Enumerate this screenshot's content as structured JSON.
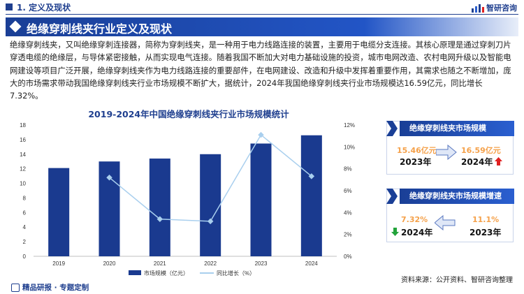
{
  "header": {
    "section_title": "1. 定义及现状",
    "logo_text": "智研咨询"
  },
  "banner": {
    "title": "绝缘穿刺线夹行业定义及现状"
  },
  "intro": {
    "text": "绝缘穿刺线夹，又叫绝缘穿刺连接器，简称为穿刺线夹，是一种用于电力线路连接的装置，主要用于电缆分支连接。其核心原理是通过穿刺刀片穿透电缆的绝缘层，与导体紧密接触，从而实现电气连接。随着我国不断加大对电力基础设施的投资，城市电网改造、农村电网升级以及智能电网建设等项目广泛开展，绝缘穿刺线夹作为电力线路连接的重要部件，在电网建设、改造和升级中发挥着重要作用，其需求也随之不断增加，庞大的市场需求带动我国绝缘穿刺线夹行业市场规模不断扩大，据统计，2024年我国绝缘穿刺线夹行业市场规模达16.59亿元，同比增长7.32%。"
  },
  "chart_data": {
    "type": "bar",
    "title": "2019-2024年中国绝缘穿刺线夹行业市场规模统计",
    "categories": [
      "2019",
      "2020",
      "2021",
      "2022",
      "2023",
      "2024"
    ],
    "series": [
      {
        "name": "市场规模（亿元）",
        "type": "bar",
        "axis": "left",
        "values": [
          12.1,
          13.0,
          13.4,
          14.0,
          15.46,
          16.59
        ]
      },
      {
        "name": "同比增长（%）",
        "type": "line",
        "axis": "right",
        "values": [
          null,
          7.2,
          3.4,
          3.2,
          11.1,
          7.32
        ]
      }
    ],
    "left_axis": {
      "ylim": [
        0,
        18
      ],
      "ticks": [
        "0",
        "2",
        "4",
        "6",
        "8",
        "10",
        "12",
        "14",
        "16",
        "18"
      ]
    },
    "right_axis": {
      "ylim": [
        0,
        12
      ],
      "ticks": [
        "0%",
        "2%",
        "4%",
        "6%",
        "8%",
        "10%",
        "12%"
      ]
    },
    "legend": "bottom",
    "grid": false,
    "colors": {
      "bar": "#1a3a8f",
      "line": "#a9cfee"
    }
  },
  "card_scale": {
    "title": "绝缘穿刺线夹市场规模",
    "prev_value": "15.46亿元",
    "prev_year": "2023年",
    "curr_value": "16.59亿元",
    "curr_year": "2024年"
  },
  "card_growth": {
    "title": "绝缘穿刺线夹市场规模增速",
    "curr_value": "7.32%",
    "curr_year": "2024年",
    "prev_value": "11.1%",
    "prev_year": "2023年"
  },
  "footer": {
    "left_text": "精品研报 · 专题定制",
    "source": "资料来源：公开资料、智研咨询整理"
  },
  "colors": {
    "primary": "#1f3f8f",
    "orange": "#f5a14a",
    "up_red": "#e02020",
    "down_green": "#22a33a"
  }
}
